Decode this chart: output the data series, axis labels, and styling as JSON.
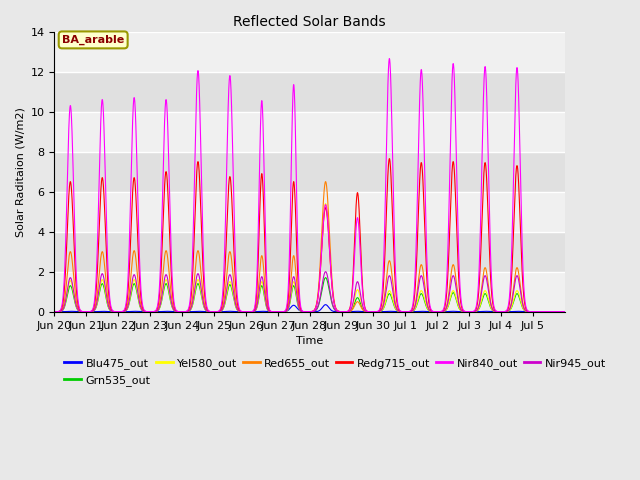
{
  "title": "Reflected Solar Bands",
  "xlabel": "Time",
  "ylabel": "Solar Raditaion (W/m2)",
  "ylim": [
    0,
    14
  ],
  "annotation_text": "BA_arable",
  "annotation_color": "#8B0000",
  "annotation_bg": "#FFFFCC",
  "annotation_border": "#999900",
  "series_order": [
    "Blu475_out",
    "Grn535_out",
    "Yel580_out",
    "Red655_out",
    "Redg715_out",
    "Nir945_out",
    "Nir840_out"
  ],
  "legend_order": [
    "Blu475_out",
    "Grn535_out",
    "Yel580_out",
    "Red655_out",
    "Redg715_out",
    "Nir840_out",
    "Nir945_out"
  ],
  "series": {
    "Blu475_out": {
      "color": "#0000FF"
    },
    "Grn535_out": {
      "color": "#00CC00"
    },
    "Yel580_out": {
      "color": "#FFFF00"
    },
    "Red655_out": {
      "color": "#FF8000"
    },
    "Redg715_out": {
      "color": "#FF0000"
    },
    "Nir840_out": {
      "color": "#FF00FF"
    },
    "Nir945_out": {
      "color": "#CC00CC"
    }
  },
  "plot_bg_colors": [
    "#FFFFFF",
    "#EBEBEB"
  ],
  "grid_color": "#D8D8D8",
  "nir840_peaks": [
    10.3,
    10.6,
    10.7,
    10.6,
    12.05,
    11.8,
    10.55,
    11.35,
    5.35,
    4.7,
    12.65,
    12.1,
    12.4,
    12.25,
    12.2
  ],
  "nir840_widths": [
    0.1,
    0.1,
    0.1,
    0.1,
    0.1,
    0.1,
    0.08,
    0.08,
    0.12,
    0.09,
    0.1,
    0.1,
    0.1,
    0.1,
    0.1
  ],
  "redg715_peaks": [
    6.5,
    6.7,
    6.7,
    7.0,
    7.5,
    6.75,
    6.9,
    6.5,
    5.2,
    5.95,
    7.65,
    7.45,
    7.5,
    7.45,
    7.3
  ],
  "red655_peaks": [
    3.0,
    3.0,
    3.05,
    3.05,
    3.05,
    3.0,
    2.8,
    2.8,
    6.5,
    0.5,
    2.55,
    2.35,
    2.35,
    2.2,
    2.2
  ],
  "yel580_peaks": [
    1.55,
    1.6,
    1.6,
    1.6,
    1.6,
    1.5,
    1.5,
    1.5,
    5.4,
    1.1,
    1.05,
    1.05,
    1.05,
    1.05,
    1.05
  ],
  "grn535_peaks": [
    1.3,
    1.4,
    1.4,
    1.4,
    1.4,
    1.35,
    1.3,
    1.3,
    1.7,
    0.7,
    0.9,
    0.9,
    0.95,
    0.9,
    0.9
  ],
  "nir945_peaks": [
    1.7,
    1.9,
    1.85,
    1.85,
    1.9,
    1.85,
    1.75,
    1.75,
    2.0,
    1.5,
    1.8,
    1.8,
    1.8,
    1.8,
    1.8
  ],
  "blu475_special_days": [
    7,
    8
  ],
  "blu475_special_peaks": [
    0.32,
    0.35
  ],
  "tick_labels": [
    "Jun 20",
    "Jun 21",
    "Jun 22",
    "Jun 23",
    "Jun 24",
    "Jun 25",
    "Jun 26",
    "Jun 27",
    "Jun 28",
    "Jun 29",
    "Jun 30",
    "Jul 1",
    "Jul 2",
    "Jul 3",
    "Jul 4",
    "Jul 5"
  ]
}
